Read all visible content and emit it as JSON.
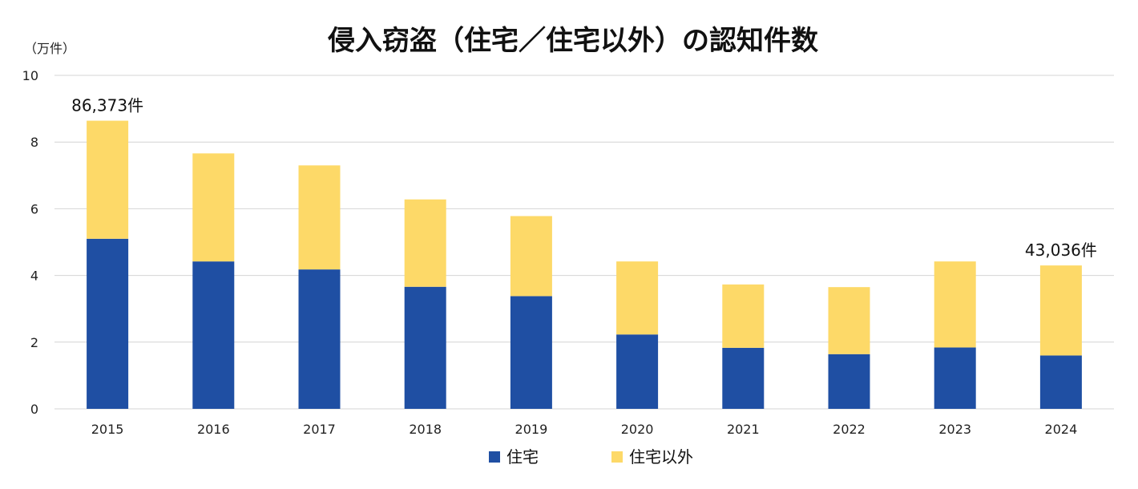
{
  "chart_data": {
    "type": "bar",
    "stacked": true,
    "title": "侵入窃盗（住宅／住宅以外）の認知件数",
    "unit_label": "（万件）",
    "categories": [
      "2015",
      "2016",
      "2017",
      "2018",
      "2019",
      "2020",
      "2021",
      "2022",
      "2023",
      "2024"
    ],
    "series": [
      {
        "name": "住宅",
        "color": "#1f4fa3",
        "values": [
          5.1,
          4.42,
          4.18,
          3.66,
          3.38,
          2.23,
          1.83,
          1.64,
          1.84,
          1.6
        ]
      },
      {
        "name": "住宅以外",
        "color": "#fdd968",
        "values": [
          3.54,
          3.24,
          3.12,
          2.62,
          2.4,
          2.19,
          1.9,
          2.01,
          2.58,
          2.7
        ]
      }
    ],
    "ylim": [
      0,
      10
    ],
    "yticks": [
      "0",
      "2",
      "4",
      "6",
      "8",
      "10"
    ],
    "grid": true,
    "legend_position": "bottom",
    "annotations": [
      {
        "category": "2015",
        "text": "86,373件"
      },
      {
        "category": "2024",
        "text": "43,036件"
      }
    ]
  }
}
